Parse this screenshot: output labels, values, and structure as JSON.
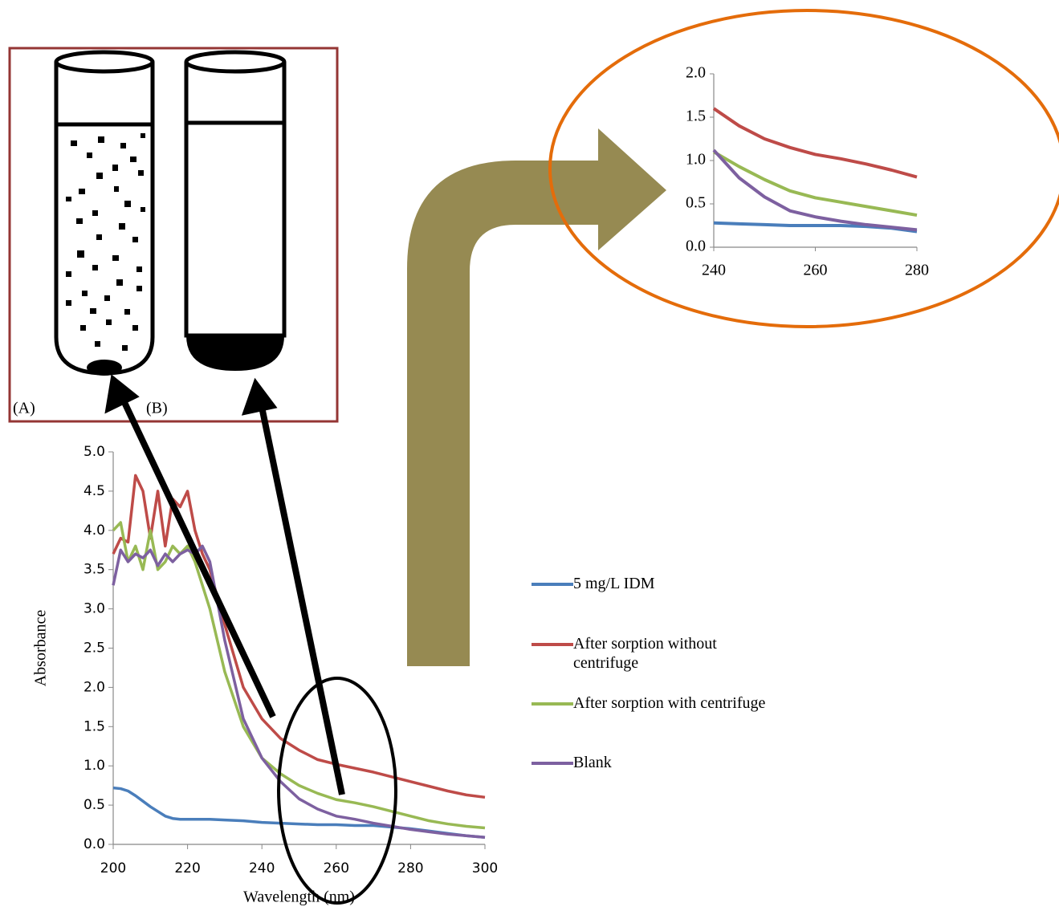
{
  "chart_data": [
    {
      "type": "line",
      "x_label": "Wavelength (nm)",
      "y_label": "Absorbance",
      "x": [
        200,
        202,
        204,
        206,
        208,
        210,
        212,
        214,
        216,
        218,
        220,
        222,
        224,
        226,
        230,
        235,
        240,
        245,
        250,
        255,
        260,
        265,
        270,
        275,
        280,
        285,
        290,
        295,
        300
      ],
      "xlim": [
        200,
        300
      ],
      "xticks": [
        200,
        220,
        240,
        260,
        280,
        300
      ],
      "ylim": [
        0,
        5
      ],
      "yticks": [
        {
          "value": 0,
          "label": "0.0"
        },
        0.5,
        {
          "value": 1,
          "label": "1.0"
        },
        1.5,
        {
          "value": 2,
          "label": "2.0"
        },
        2.5,
        {
          "value": 3,
          "label": "3.0"
        },
        3.5,
        {
          "value": 4,
          "label": "4.0"
        },
        4.5,
        {
          "value": 5,
          "label": "5.0"
        }
      ],
      "legend": "right",
      "series": [
        {
          "name": "5 mg/L IDM",
          "color": "#4a7ebb",
          "values": [
            0.72,
            0.71,
            0.68,
            0.62,
            0.55,
            0.48,
            0.42,
            0.36,
            0.33,
            0.32,
            0.32,
            0.32,
            0.32,
            0.32,
            0.31,
            0.3,
            0.28,
            0.27,
            0.26,
            0.25,
            0.25,
            0.24,
            0.24,
            0.22,
            0.2,
            0.17,
            0.14,
            0.11,
            0.09
          ]
        },
        {
          "name": "After sorption without centrifuge",
          "color": "#be4b48",
          "values": [
            3.7,
            3.9,
            3.85,
            4.7,
            4.5,
            3.9,
            4.5,
            3.8,
            4.4,
            4.3,
            4.5,
            4.0,
            3.7,
            3.5,
            2.8,
            2.0,
            1.6,
            1.35,
            1.2,
            1.08,
            1.02,
            0.97,
            0.92,
            0.86,
            0.8,
            0.74,
            0.68,
            0.63,
            0.6
          ]
        },
        {
          "name": "After sorption with centrifuge",
          "color": "#98b954",
          "values": [
            4.0,
            4.1,
            3.6,
            3.8,
            3.5,
            4.0,
            3.5,
            3.6,
            3.8,
            3.7,
            3.8,
            3.6,
            3.3,
            3.0,
            2.2,
            1.5,
            1.1,
            0.9,
            0.75,
            0.65,
            0.57,
            0.53,
            0.48,
            0.42,
            0.36,
            0.3,
            0.26,
            0.23,
            0.21
          ]
        },
        {
          "name": "Blank",
          "color": "#7d60a0",
          "values": [
            3.3,
            3.75,
            3.6,
            3.7,
            3.65,
            3.75,
            3.55,
            3.7,
            3.6,
            3.7,
            3.75,
            3.7,
            3.8,
            3.6,
            2.6,
            1.6,
            1.1,
            0.8,
            0.58,
            0.45,
            0.36,
            0.32,
            0.27,
            0.23,
            0.19,
            0.16,
            0.13,
            0.11,
            0.09
          ]
        }
      ]
    },
    {
      "type": "line",
      "x": [
        240,
        245,
        250,
        255,
        260,
        265,
        270,
        275,
        280
      ],
      "xlim": [
        240,
        280
      ],
      "xticks": [
        240,
        260,
        280
      ],
      "ylim": [
        0,
        2
      ],
      "yticks": [
        {
          "value": 0,
          "label": "0.0"
        },
        0.5,
        {
          "value": 1,
          "label": "1.0"
        },
        1.5,
        {
          "value": 2,
          "label": "2.0"
        }
      ],
      "series": [
        {
          "color": "#4a7ebb",
          "values": [
            0.28,
            0.27,
            0.26,
            0.25,
            0.25,
            0.25,
            0.24,
            0.22,
            0.18
          ]
        },
        {
          "color": "#be4b48",
          "values": [
            1.6,
            1.4,
            1.25,
            1.15,
            1.07,
            1.02,
            0.96,
            0.89,
            0.81
          ]
        },
        {
          "color": "#98b954",
          "values": [
            1.1,
            0.93,
            0.78,
            0.65,
            0.57,
            0.52,
            0.47,
            0.42,
            0.37
          ]
        },
        {
          "color": "#7d60a0",
          "values": [
            1.12,
            0.8,
            0.58,
            0.42,
            0.35,
            0.3,
            0.26,
            0.23,
            0.2
          ]
        }
      ]
    }
  ],
  "tube_labels": [
    "(A)",
    "(B)"
  ]
}
